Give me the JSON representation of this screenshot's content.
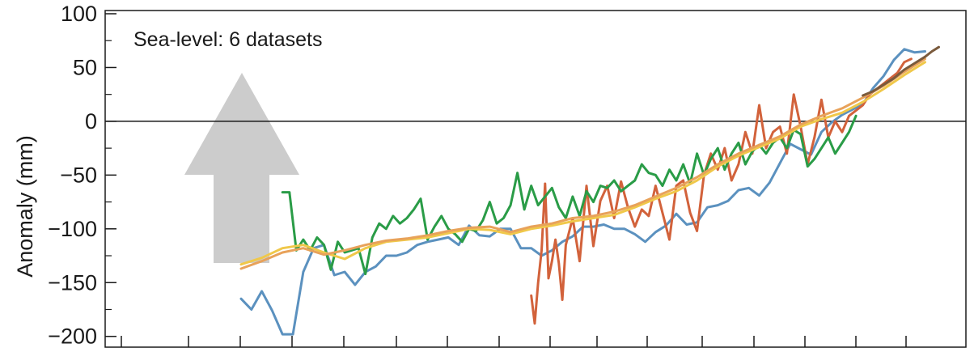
{
  "chart_data": {
    "type": "line",
    "title": "",
    "annotation": "Sea-level: 6 datasets",
    "xlabel": "",
    "ylabel": "Anomaly (mm)",
    "ylim": [
      -210,
      103
    ],
    "xlim": [
      0,
      100
    ],
    "y_ticks": [
      100,
      50,
      0,
      -50,
      -100,
      -150,
      -200
    ],
    "y_tick_labels": [
      "100",
      "50",
      "0",
      "−50",
      "−100",
      "−150",
      "−200"
    ],
    "grid": false,
    "zero_line": true,
    "arrow": {
      "direction": "up",
      "color": "#cccccc"
    },
    "series": [
      {
        "color": "#5b91bf",
        "x": [
          0,
          1.5,
          3,
          4.5,
          6,
          7.5,
          9,
          10.5,
          12,
          13.5,
          15,
          16.5,
          18,
          19.5,
          21,
          22.5,
          24,
          25.5,
          27,
          28.5,
          30,
          31.5,
          33,
          34.5,
          36,
          37.5,
          39,
          40.5,
          42,
          43.5,
          45,
          46.5,
          48,
          49.5,
          51,
          52.5,
          54,
          55.5,
          57,
          58.5,
          60,
          61.5,
          63,
          64.5,
          66,
          67.5,
          69,
          70.5,
          72,
          73.5,
          75,
          76.5,
          78,
          79.5,
          81,
          82.5,
          84,
          85.5,
          87,
          88.5,
          90,
          91.5,
          93,
          94.5,
          96,
          97.5,
          99
        ],
        "y": [
          -165,
          -175,
          -158,
          -176,
          -198,
          -198,
          -140,
          -118,
          -115,
          -143,
          -140,
          -152,
          -140,
          -135,
          -125,
          -125,
          -122,
          -115,
          -112,
          -110,
          -108,
          -115,
          -97,
          -106,
          -107,
          -100,
          -100,
          -118,
          -118,
          -125,
          -120,
          -112,
          -107,
          -98,
          -98,
          -96,
          -100,
          -100,
          -105,
          -112,
          -103,
          -97,
          -86,
          -96,
          -94,
          -80,
          -78,
          -74,
          -64,
          -62,
          -69,
          -57,
          -39,
          -21,
          -26,
          -31,
          -10,
          -1,
          6,
          11,
          16,
          31,
          42,
          57,
          67,
          64,
          65
        ]
      },
      {
        "color": "#d2623b",
        "x": [
          42,
          42.5,
          43,
          43.5,
          44,
          44.5,
          45,
          45.5,
          46,
          46.5,
          47,
          48,
          49,
          50,
          51,
          52,
          53,
          54,
          55,
          56,
          57,
          58,
          59,
          60,
          61,
          62,
          63,
          64,
          65,
          66,
          67,
          68,
          69,
          70,
          71,
          72,
          73,
          74,
          75,
          76,
          77,
          78,
          79,
          80,
          81,
          82,
          83,
          84,
          85,
          86,
          87,
          88,
          89,
          90,
          91,
          92,
          93,
          94,
          95,
          96,
          97
        ],
        "y": [
          -162,
          -188,
          -150,
          -120,
          -58,
          -146,
          -130,
          -110,
          -132,
          -166,
          -115,
          -90,
          -130,
          -60,
          -116,
          -74,
          -60,
          -90,
          -56,
          -80,
          -98,
          -82,
          -88,
          -60,
          -85,
          -110,
          -60,
          -55,
          -85,
          -102,
          -50,
          -30,
          -45,
          -25,
          -55,
          -40,
          -10,
          -30,
          15,
          -25,
          -10,
          -5,
          -30,
          25,
          -5,
          -40,
          -15,
          20,
          -15,
          0,
          -10,
          5,
          10,
          15,
          25,
          30,
          35,
          40,
          45,
          55,
          58
        ]
      },
      {
        "color": "#2a9c47",
        "x": [
          6,
          7,
          8,
          9,
          10,
          11,
          12,
          13,
          14,
          15,
          16,
          17,
          18,
          19,
          20,
          21,
          22,
          23,
          24,
          25,
          26,
          27,
          28,
          29,
          30,
          31,
          32,
          33,
          34,
          35,
          36,
          37,
          38,
          39,
          40,
          41,
          42,
          43,
          44,
          45,
          46,
          47,
          48,
          49,
          50,
          51,
          52,
          53,
          54,
          55,
          56,
          57,
          58,
          59,
          60,
          61,
          62,
          63,
          64,
          65,
          66,
          67,
          68,
          69,
          70,
          71,
          72,
          73,
          74,
          75,
          76,
          77,
          78,
          79,
          80,
          81,
          82,
          83,
          84,
          85,
          86,
          87,
          88,
          89
        ],
        "y": [
          -66,
          -66,
          -120,
          -110,
          -120,
          -108,
          -115,
          -138,
          -112,
          -122,
          -120,
          -118,
          -142,
          -108,
          -95,
          -100,
          -88,
          -95,
          -90,
          -82,
          -72,
          -110,
          -98,
          -88,
          -100,
          -105,
          -112,
          -100,
          -102,
          -92,
          -75,
          -95,
          -90,
          -78,
          -48,
          -82,
          -60,
          -78,
          -70,
          -62,
          -80,
          -90,
          -70,
          -88,
          -65,
          -75,
          -60,
          -62,
          -55,
          -65,
          -60,
          -55,
          -40,
          -48,
          -50,
          -60,
          -45,
          -55,
          -40,
          -58,
          -30,
          -50,
          -35,
          -25,
          -45,
          -30,
          -20,
          -40,
          -28,
          -22,
          -30,
          -20,
          -15,
          -25,
          -8,
          -12,
          -42,
          -35,
          -25,
          -15,
          -30,
          -20,
          -10,
          5
        ]
      },
      {
        "color": "#f0c84a",
        "x": [
          0,
          3,
          6,
          9,
          12,
          15,
          18,
          21,
          24,
          27,
          30,
          33,
          36,
          39,
          42,
          45,
          48,
          51,
          54,
          57,
          60,
          63,
          66,
          69,
          72,
          75,
          78,
          81,
          84,
          87,
          90,
          93,
          96,
          99
        ],
        "y": [
          -133,
          -127,
          -118,
          -115,
          -122,
          -128,
          -118,
          -112,
          -110,
          -108,
          -104,
          -100,
          -101,
          -105,
          -100,
          -97,
          -93,
          -90,
          -87,
          -80,
          -72,
          -65,
          -55,
          -42,
          -32,
          -24,
          -16,
          -5,
          2,
          8,
          18,
          30,
          43,
          55
        ]
      },
      {
        "color": "#e8a25a",
        "x": [
          0,
          3,
          6,
          9,
          12,
          15,
          18,
          21,
          24,
          27,
          30,
          33,
          36,
          39,
          42,
          45,
          48,
          51,
          54,
          57,
          60,
          63,
          66,
          69,
          72,
          75,
          78,
          81,
          84,
          87,
          90,
          93,
          96,
          99
        ],
        "y": [
          -137,
          -130,
          -122,
          -118,
          -124,
          -120,
          -115,
          -111,
          -109,
          -106,
          -102,
          -99,
          -98,
          -103,
          -98,
          -95,
          -90,
          -88,
          -84,
          -78,
          -70,
          -62,
          -52,
          -40,
          -30,
          -22,
          -14,
          -3,
          5,
          12,
          22,
          33,
          46,
          58
        ]
      },
      {
        "color": "#7a5a3c",
        "x": [
          90,
          91.5,
          93,
          94.5,
          96,
          97.5,
          99,
          100,
          101
        ],
        "y": [
          24,
          28,
          34,
          40,
          48,
          54,
          60,
          65,
          69
        ]
      }
    ]
  }
}
